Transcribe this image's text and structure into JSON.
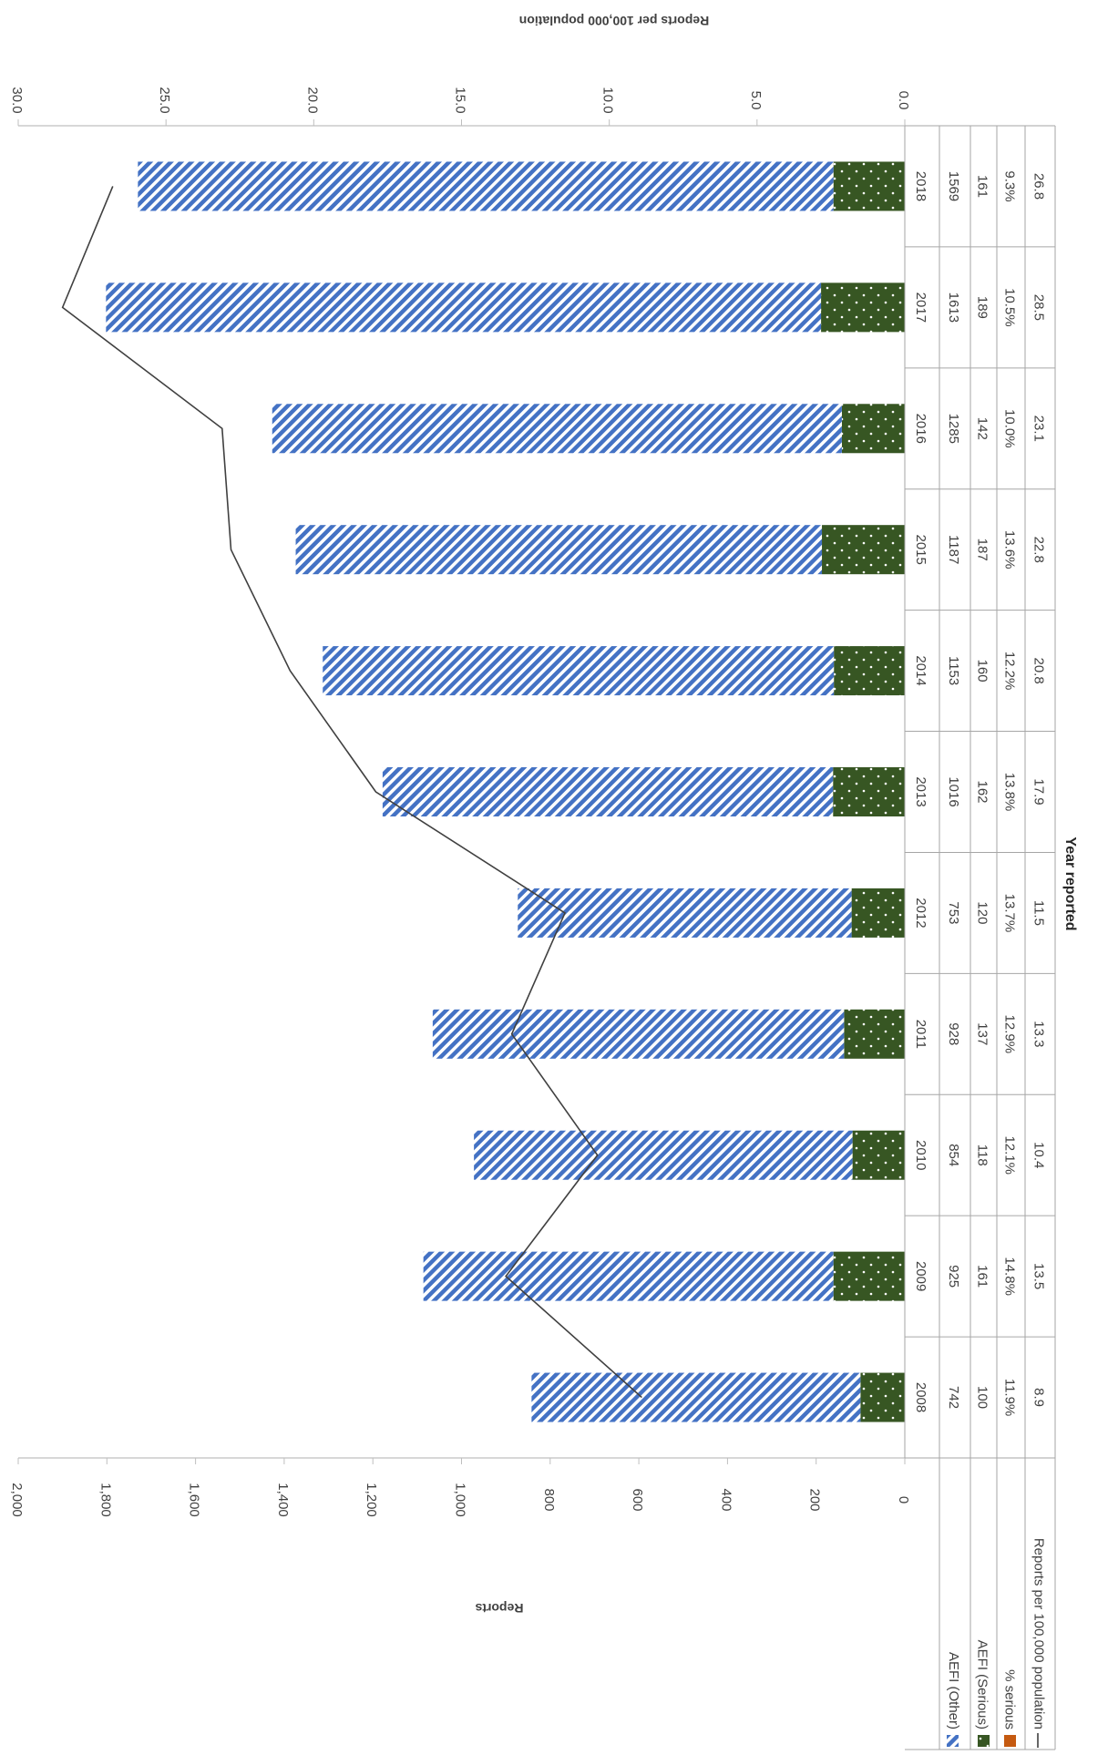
{
  "chart_data": {
    "type": "bar",
    "stacked": true,
    "orientation": "rotated-90-cw",
    "categories": [
      "2008",
      "2009",
      "2010",
      "2011",
      "2012",
      "2013",
      "2014",
      "2015",
      "2016",
      "2017",
      "2018"
    ],
    "series": [
      {
        "name": "AEFI (Serious)",
        "kind": "bar",
        "color": "#375623",
        "pattern": "dots",
        "values": [
          100,
          161,
          118,
          137,
          120,
          162,
          160,
          187,
          142,
          189,
          161
        ]
      },
      {
        "name": "AEFI (Other)",
        "kind": "bar",
        "color": "#4472C4",
        "pattern": "diagonal-stripes",
        "values": [
          742,
          925,
          854,
          928,
          753,
          1016,
          1153,
          1187,
          1285,
          1613,
          1569
        ]
      },
      {
        "name": "% serious",
        "kind": "table-row",
        "color": "#C55A11",
        "values": [
          "11.9%",
          "14.8%",
          "12.1%",
          "12.9%",
          "13.7%",
          "13.8%",
          "12.2%",
          "13.6%",
          "10.0%",
          "10.5%",
          "9.3%"
        ]
      },
      {
        "name": "Reports per 100,000 population",
        "kind": "line",
        "axis": "secondary",
        "color": "#404040",
        "values": [
          8.9,
          13.5,
          10.4,
          13.3,
          11.5,
          17.9,
          20.8,
          22.8,
          23.1,
          28.5,
          26.8
        ]
      }
    ],
    "table_rows": [
      {
        "legend": "AEFI (Other)",
        "values": [
          "742",
          "925",
          "854",
          "928",
          "753",
          "1016",
          "1153",
          "1187",
          "1285",
          "1613",
          "1569"
        ]
      },
      {
        "legend": "AEFI (Serious)",
        "values": [
          "100",
          "161",
          "118",
          "137",
          "120",
          "162",
          "160",
          "187",
          "142",
          "189",
          "161"
        ]
      },
      {
        "legend": "% serious",
        "values": [
          "11.9%",
          "14.8%",
          "12.1%",
          "12.9%",
          "13.7%",
          "13.8%",
          "12.2%",
          "13.6%",
          "10.0%",
          "10.5%",
          "9.3%"
        ]
      },
      {
        "legend": "Reports per 100,000 population",
        "values": [
          "8.9",
          "13.5",
          "10.4",
          "13.3",
          "11.5",
          "17.9",
          "20.8",
          "22.8",
          "23.1",
          "28.5",
          "26.8"
        ]
      }
    ],
    "xlabel": "Year reported",
    "ylabel": "Reports",
    "y2label": "Reports per 100,000 population",
    "ylim": [
      0,
      2000
    ],
    "y2lim": [
      0,
      30
    ],
    "yticks": [
      "0",
      "200",
      "400",
      "600",
      "800",
      "1,000",
      "1,200",
      "1,400",
      "1,600",
      "1,800",
      "2,000"
    ],
    "y2ticks": [
      "0.0",
      "5.0",
      "10.0",
      "15.0",
      "20.0",
      "25.0",
      "30.0"
    ],
    "grid": false,
    "legend": "data-table"
  }
}
